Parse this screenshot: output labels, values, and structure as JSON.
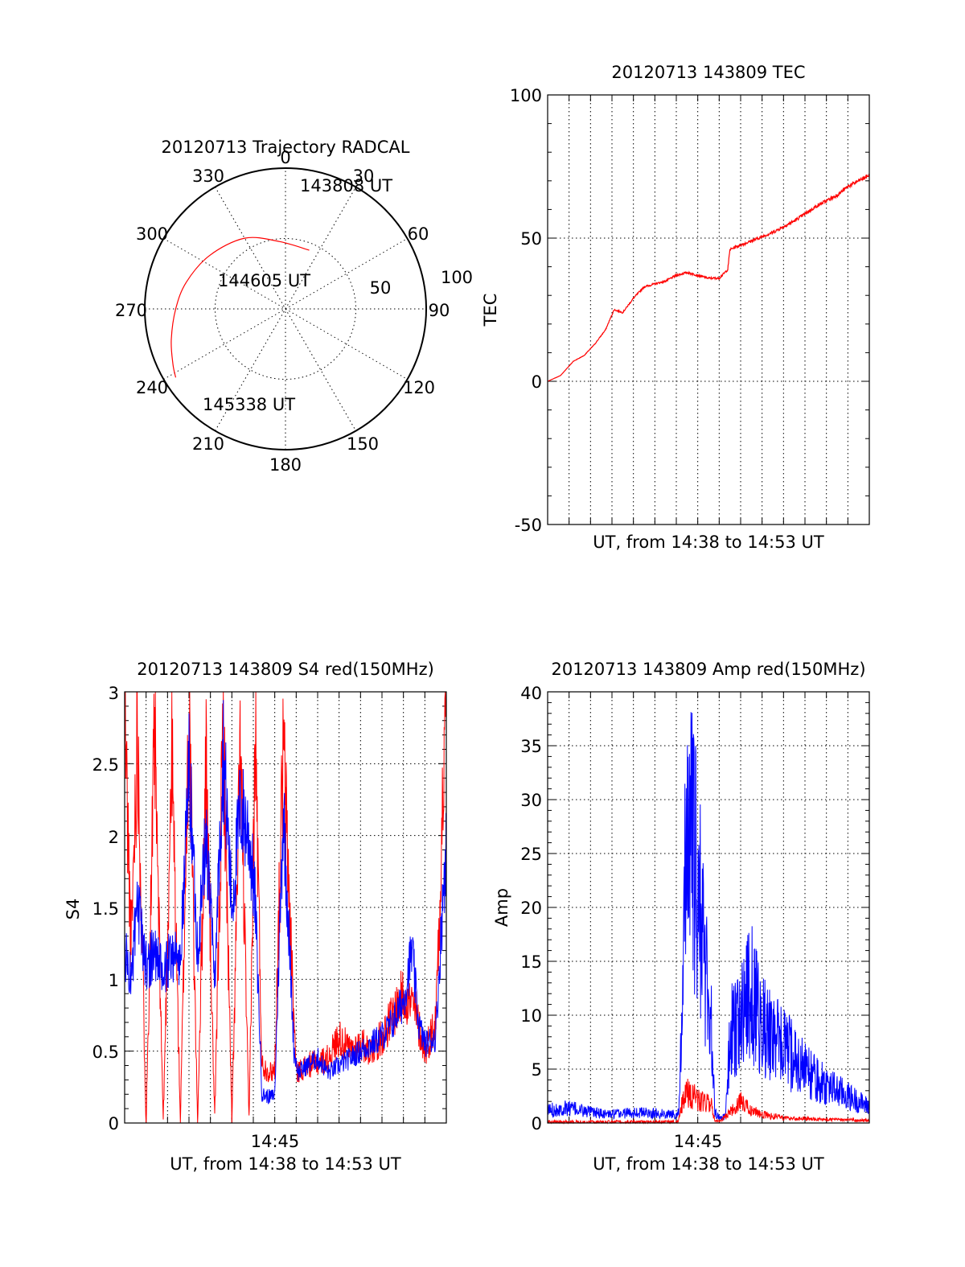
{
  "colors": {
    "red": "#ff0000",
    "blue": "#0000ff",
    "axis": "#000000"
  },
  "polar": {
    "title": "20120713 Trajectory RADCAL",
    "azimuth_labels": [
      "0",
      "30",
      "60",
      "90",
      "120",
      "150",
      "180",
      "210",
      "240",
      "270",
      "300",
      "330"
    ],
    "radius_labels": [
      "50",
      "100"
    ],
    "time_labels": [
      "143808 UT",
      "144605 UT",
      "145338 UT"
    ]
  },
  "panels": {
    "tec": {
      "title": "20120713 143809 TEC",
      "xlabel": "UT, from 14:38 to 14:53 UT",
      "ylabel": "TEC",
      "yticks": [
        "-50",
        "0",
        "50",
        "100"
      ]
    },
    "s4": {
      "title": "20120713 143809 S4 red(150MHz)",
      "xlabel": "UT, from 14:38 to 14:53 UT",
      "ylabel": "S4",
      "xtick": "14:45",
      "yticks": [
        "0",
        "0.5",
        "1",
        "1.5",
        "2",
        "2.5",
        "3"
      ]
    },
    "amp": {
      "title": "20120713 143809 Amp red(150MHz)",
      "xlabel": "UT, from 14:38 to 14:53 UT",
      "ylabel": "Amp",
      "xtick": "14:45",
      "yticks": [
        "0",
        "5",
        "10",
        "15",
        "20",
        "25",
        "30",
        "35",
        "40"
      ]
    }
  },
  "chart_data": [
    {
      "type": "scatter",
      "subtype": "polar-trajectory",
      "title": "20120713 Trajectory RADCAL",
      "azimuth_deg_ticks": [
        0,
        30,
        60,
        90,
        120,
        150,
        180,
        210,
        240,
        270,
        300,
        330
      ],
      "radius_range": [
        0,
        100
      ],
      "series": [
        {
          "color": "#ff0000",
          "points_az_r": [
            [
              22,
              45
            ],
            [
              355,
              48
            ],
            [
              330,
              58
            ],
            [
              305,
              66
            ],
            [
              285,
              73
            ],
            [
              270,
              78
            ],
            [
              255,
              84
            ],
            [
              244,
              89
            ],
            [
              238,
              92
            ]
          ],
          "labels": [
            {
              "text": "143808 UT",
              "az": 22,
              "r": 45
            },
            {
              "text": "144605 UT",
              "az": 270,
              "r": 78
            },
            {
              "text": "145338 UT",
              "az": 238,
              "r": 92
            }
          ]
        }
      ]
    },
    {
      "type": "line",
      "title": "20120713 143809 TEC",
      "xlabel": "UT, from 14:38 to 14:53 UT",
      "ylabel": "TEC",
      "xlim": [
        0,
        15
      ],
      "ylim": [
        -50,
        100
      ],
      "series": [
        {
          "color": "#ff0000",
          "x": [
            0,
            0.6,
            1.2,
            1.7,
            2.2,
            2.7,
            3.1,
            3.5,
            4.0,
            4.5,
            5.0,
            5.5,
            6.0,
            6.5,
            7.0,
            7.5,
            8.0,
            8.4,
            8.5,
            8.8,
            9.5,
            10.5,
            11.5,
            12.5,
            13.5,
            14.0,
            15.0
          ],
          "y": [
            0,
            2,
            7,
            9,
            13,
            18,
            25,
            24,
            29,
            33,
            34,
            35,
            37,
            38,
            37,
            36,
            36,
            39,
            46,
            47,
            49,
            52,
            56,
            61,
            65,
            68,
            72
          ]
        }
      ]
    },
    {
      "type": "line",
      "title": "20120713 143809 S4 red(150MHz)",
      "xlabel": "UT, from 14:38 to 14:53 UT",
      "ylabel": "S4",
      "xlim": [
        0,
        15
      ],
      "ylim": [
        0,
        3
      ],
      "x_tick": {
        "value": 7,
        "label": "14:45"
      },
      "series": [
        {
          "color": "#ff0000",
          "x": [
            0,
            0.3,
            0.6,
            1.0,
            1.4,
            1.8,
            2.2,
            2.6,
            3.0,
            3.4,
            3.8,
            4.2,
            4.6,
            5.0,
            5.4,
            5.8,
            6.1,
            6.4,
            6.8,
            7.0,
            7.4,
            8.0,
            8.5,
            9.0,
            9.5,
            10.0,
            10.5,
            11.0,
            11.5,
            12.0,
            12.5,
            13.0,
            13.5,
            14.0,
            14.5,
            15.0
          ],
          "y": [
            2.9,
            1.2,
            2.8,
            0.0,
            2.7,
            0.0,
            2.6,
            0.0,
            2.9,
            0.0,
            2.5,
            0.0,
            2.8,
            0.0,
            2.6,
            0.0,
            2.7,
            0.4,
            0.35,
            0.38,
            2.6,
            0.35,
            0.4,
            0.42,
            0.45,
            0.6,
            0.5,
            0.55,
            0.5,
            0.6,
            0.75,
            0.9,
            0.8,
            0.5,
            0.7,
            3.0
          ]
        },
        {
          "color": "#0000ff",
          "x": [
            0,
            0.3,
            0.6,
            1.0,
            1.4,
            1.8,
            2.2,
            2.6,
            3.0,
            3.4,
            3.8,
            4.2,
            4.6,
            5.0,
            5.4,
            5.8,
            6.1,
            6.4,
            6.8,
            7.0,
            7.4,
            7.9,
            8.1,
            8.5,
            9.0,
            9.5,
            10.0,
            10.5,
            11.0,
            11.5,
            12.0,
            12.5,
            13.0,
            13.4,
            13.7,
            14.0,
            14.5,
            15.0
          ],
          "y": [
            1.2,
            1.0,
            1.5,
            1.1,
            1.2,
            1.0,
            1.2,
            1.1,
            2.5,
            1.2,
            2.0,
            1.0,
            2.6,
            1.5,
            2.2,
            2.0,
            1.5,
            0.2,
            0.18,
            0.2,
            2.2,
            0.5,
            0.35,
            0.4,
            0.45,
            0.35,
            0.4,
            0.45,
            0.5,
            0.55,
            0.6,
            0.7,
            0.85,
            1.2,
            0.7,
            0.55,
            0.6,
            2.0
          ]
        }
      ]
    },
    {
      "type": "line",
      "title": "20120713 143809 Amp red(150MHz)",
      "xlabel": "UT, from 14:38 to 14:53 UT",
      "ylabel": "Amp",
      "xlim": [
        0,
        15
      ],
      "ylim": [
        0,
        40
      ],
      "x_tick": {
        "value": 7,
        "label": "14:45"
      },
      "series": [
        {
          "color": "#0000ff",
          "x": [
            0,
            1,
            2,
            3,
            4,
            5,
            6,
            6.1,
            6.3,
            6.5,
            6.8,
            7.1,
            7.4,
            7.6,
            7.8,
            8.0,
            8.3,
            8.5,
            9.0,
            9.5,
            10.0,
            10.5,
            11.0,
            11.5,
            12.0,
            12.5,
            13.0,
            13.5,
            14.0,
            14.5,
            15.0
          ],
          "y": [
            1.2,
            1.4,
            1.0,
            0.8,
            1.0,
            0.9,
            0.8,
            1.0,
            10,
            31,
            24,
            20,
            14,
            10,
            1.0,
            0.5,
            0.6,
            8,
            10,
            12,
            9,
            8,
            7,
            6,
            5,
            4,
            3.5,
            3,
            2.5,
            2,
            1.5
          ]
        },
        {
          "color": "#ff0000",
          "x": [
            0,
            1,
            2,
            3,
            4,
            5,
            6,
            6.1,
            6.4,
            6.8,
            7.2,
            7.6,
            7.8,
            8.0,
            8.5,
            9.0,
            9.5,
            10.0,
            10.5,
            11.0,
            11.5,
            12.0,
            13.0,
            14.0,
            15.0
          ],
          "y": [
            0.1,
            0.1,
            0.1,
            0.1,
            0.1,
            0.1,
            0.1,
            0.2,
            3,
            2.5,
            2,
            2,
            0.2,
            0.1,
            1,
            2,
            1.2,
            0.8,
            0.6,
            0.5,
            0.4,
            0.4,
            0.3,
            0.3,
            0.2
          ]
        }
      ]
    }
  ]
}
